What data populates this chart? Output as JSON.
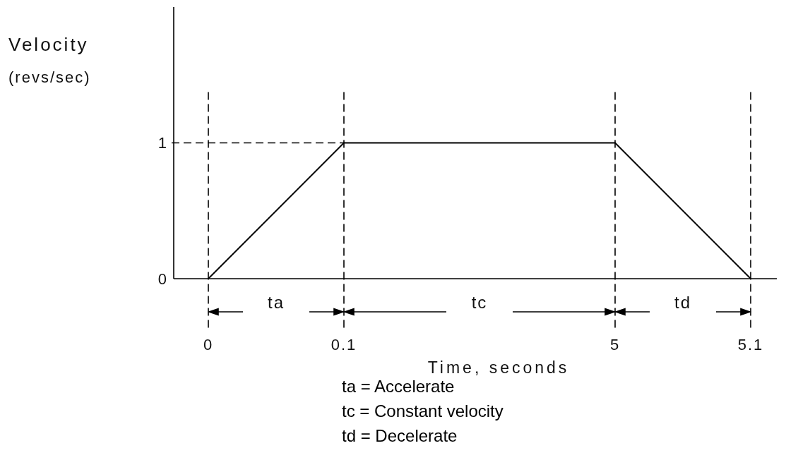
{
  "chart_data": {
    "type": "line",
    "xlabel": "Time, seconds",
    "ylabel": "Velocity\n(revs/sec)",
    "categories": [
      "0",
      "0.1",
      null,
      "5",
      "5.1"
    ],
    "values": [
      0,
      1,
      1,
      1,
      0
    ],
    "color": "#000000",
    "marker": "none",
    "line_style": "solid",
    "ylim": [
      0,
      2
    ],
    "yticks": [
      0,
      1
    ],
    "ref_lines": [
      {
        "axis": "x",
        "value": "0",
        "color": "#000000",
        "line_style": "dashed"
      },
      {
        "axis": "x",
        "value": "0.1",
        "color": "#000000",
        "line_style": "dashed"
      },
      {
        "axis": "x",
        "value": "5",
        "color": "#000000",
        "line_style": "dashed"
      },
      {
        "axis": "x",
        "value": "5.1",
        "color": "#000000",
        "line_style": "dashed"
      },
      {
        "axis": "y",
        "value": 1,
        "color": "#000000",
        "line_style": "dashed"
      }
    ],
    "annotations": [
      "ta",
      "tc",
      "td",
      "ta = Accelerate",
      "tc = Constant velocity",
      "td = Decelerate"
    ]
  }
}
